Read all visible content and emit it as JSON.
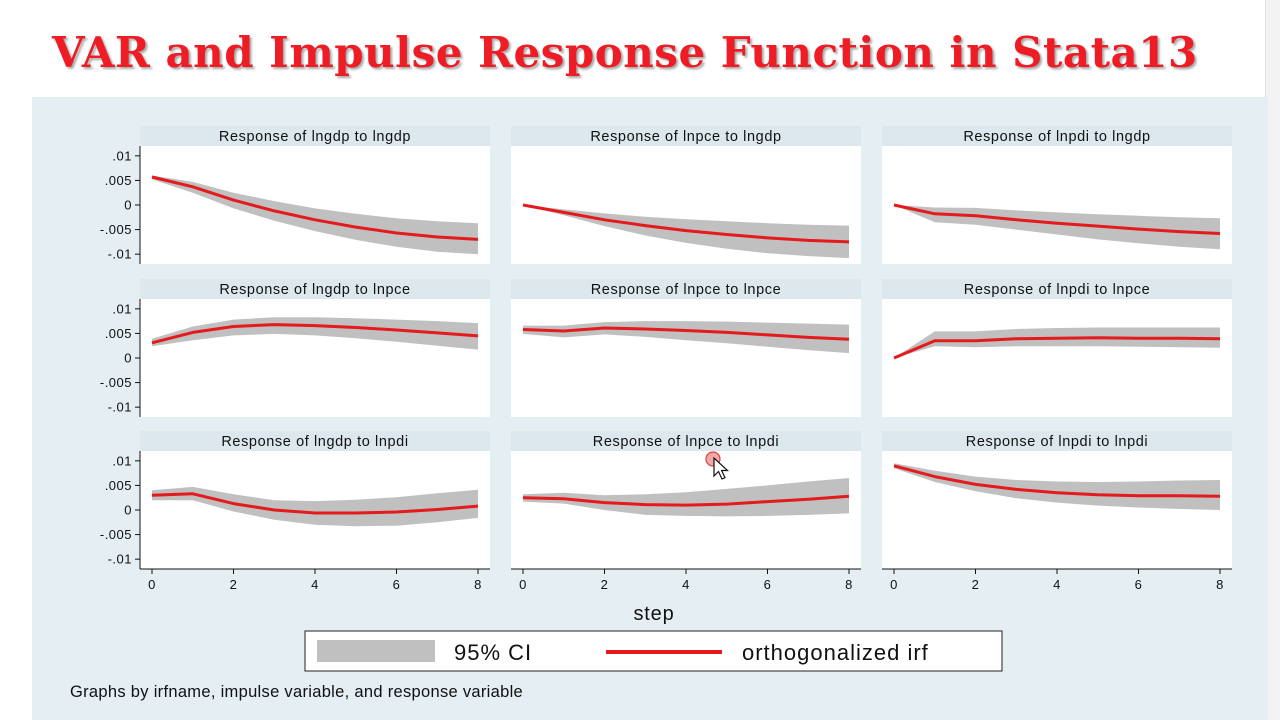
{
  "slide": {
    "title": "VAR and Impulse Response Function in Stata13"
  },
  "colors": {
    "title": "#ee1c24",
    "graph_background": "#e5eef2",
    "panel_header": "#dde8ee",
    "plot_area": "#ffffff",
    "ci_band": "#c0c0c0",
    "irf_line": "#e41a1c"
  },
  "chart_data": {
    "type": "line",
    "layout": "3x3 grid",
    "x": [
      0,
      1,
      2,
      3,
      4,
      5,
      6,
      7,
      8
    ],
    "xlabel": "step",
    "xticks": [
      "0",
      "2",
      "4",
      "6",
      "8"
    ],
    "xlim": [
      0,
      8
    ],
    "ylim": [
      -0.012,
      0.012
    ],
    "yticks": [
      0.01,
      0.005,
      0,
      -0.005,
      -0.01
    ],
    "ytick_labels": [
      ".01",
      ".005",
      "0",
      "-.005",
      "-.01"
    ],
    "grid": false,
    "legend": {
      "position": "bottom",
      "ci_label": "95% CI",
      "irf_label": "orthogonalized irf"
    },
    "note": "Graphs by irfname, impulse variable, and response variable",
    "panels": [
      {
        "title": "Response of lngdp to lngdp",
        "irf": [
          0.0057,
          0.0037,
          0.001,
          -0.0012,
          -0.003,
          -0.0045,
          -0.0057,
          -0.0065,
          -0.007
        ],
        "lower": [
          0.0052,
          0.0025,
          -0.0007,
          -0.0032,
          -0.0053,
          -0.0071,
          -0.0085,
          -0.0095,
          -0.01
        ],
        "upper": [
          0.006,
          0.0047,
          0.0025,
          0.0008,
          -0.0007,
          -0.0018,
          -0.0027,
          -0.0033,
          -0.0037
        ]
      },
      {
        "title": "Response of lnpce to lngdp",
        "irf": [
          0.0,
          -0.0015,
          -0.003,
          -0.0042,
          -0.0052,
          -0.006,
          -0.0067,
          -0.0072,
          -0.0075
        ],
        "lower": [
          0.0,
          -0.0021,
          -0.0043,
          -0.0062,
          -0.0077,
          -0.0089,
          -0.0098,
          -0.0104,
          -0.0108
        ],
        "upper": [
          0.0,
          -0.0009,
          -0.0017,
          -0.0024,
          -0.0029,
          -0.0033,
          -0.0037,
          -0.004,
          -0.0042
        ]
      },
      {
        "title": "Response of lnpdi to lngdp",
        "irf": [
          0.0,
          -0.0018,
          -0.0022,
          -0.003,
          -0.0037,
          -0.0043,
          -0.0049,
          -0.0054,
          -0.0058
        ],
        "lower": [
          0.0,
          -0.0035,
          -0.004,
          -0.005,
          -0.006,
          -0.007,
          -0.0078,
          -0.0085,
          -0.009
        ],
        "upper": [
          0.0,
          -0.0005,
          -0.0006,
          -0.0011,
          -0.0015,
          -0.0019,
          -0.0022,
          -0.0025,
          -0.0027
        ]
      },
      {
        "title": "Response of lngdp to lnpce",
        "irf": [
          0.0031,
          0.0052,
          0.0064,
          0.0068,
          0.0066,
          0.0062,
          0.0057,
          0.0051,
          0.0045
        ],
        "lower": [
          0.0024,
          0.0036,
          0.0046,
          0.0049,
          0.0046,
          0.004,
          0.0033,
          0.0025,
          0.0017
        ],
        "upper": [
          0.0039,
          0.0064,
          0.0078,
          0.0083,
          0.0083,
          0.0081,
          0.0078,
          0.0075,
          0.0071
        ]
      },
      {
        "title": "Response of lnpce to lnpce",
        "irf": [
          0.0058,
          0.0055,
          0.0061,
          0.0059,
          0.0056,
          0.0052,
          0.0047,
          0.0042,
          0.0038
        ],
        "lower": [
          0.0049,
          0.0042,
          0.0048,
          0.0043,
          0.0036,
          0.003,
          0.0023,
          0.0016,
          0.001
        ],
        "upper": [
          0.0066,
          0.0066,
          0.0073,
          0.0075,
          0.0075,
          0.0074,
          0.0072,
          0.007,
          0.0068
        ]
      },
      {
        "title": "Response of lnpdi to lnpce",
        "irf": [
          0.0,
          0.0035,
          0.0035,
          0.0039,
          0.004,
          0.0041,
          0.004,
          0.004,
          0.0039
        ],
        "lower": [
          0.0,
          0.0024,
          0.0022,
          0.0024,
          0.0024,
          0.0024,
          0.0023,
          0.0022,
          0.0021
        ],
        "upper": [
          0.0,
          0.0054,
          0.0054,
          0.0059,
          0.0061,
          0.0062,
          0.0062,
          0.0062,
          0.0062
        ]
      },
      {
        "title": "Response of lngdp to lnpdi",
        "irf": [
          0.003,
          0.0033,
          0.0013,
          0.0,
          -0.0006,
          -0.0006,
          -0.0004,
          0.0001,
          0.0008
        ],
        "lower": [
          0.002,
          0.002,
          -0.0003,
          -0.002,
          -0.003,
          -0.0033,
          -0.0032,
          -0.0025,
          -0.0016
        ],
        "upper": [
          0.004,
          0.0047,
          0.0032,
          0.002,
          0.0018,
          0.0021,
          0.0026,
          0.0034,
          0.0041
        ]
      },
      {
        "title": "Response of lnpce to lnpdi",
        "irf": [
          0.0025,
          0.0023,
          0.0015,
          0.0011,
          0.001,
          0.0012,
          0.0017,
          0.0022,
          0.0028
        ],
        "lower": [
          0.0017,
          0.0013,
          0.0,
          -0.001,
          -0.0012,
          -0.0013,
          -0.0012,
          -0.001,
          -0.0007
        ],
        "upper": [
          0.0032,
          0.0035,
          0.003,
          0.0032,
          0.0036,
          0.0043,
          0.005,
          0.0058,
          0.0065
        ]
      },
      {
        "title": "Response of lnpdi to lnpdi",
        "irf": [
          0.009,
          0.0068,
          0.0052,
          0.0042,
          0.0035,
          0.0031,
          0.0029,
          0.0029,
          0.0028
        ],
        "lower": [
          0.0085,
          0.0057,
          0.0038,
          0.0024,
          0.0015,
          0.0009,
          0.0005,
          0.0002,
          0.0
        ],
        "upper": [
          0.0095,
          0.008,
          0.0068,
          0.0061,
          0.0058,
          0.0057,
          0.0058,
          0.006,
          0.0061
        ]
      }
    ]
  }
}
